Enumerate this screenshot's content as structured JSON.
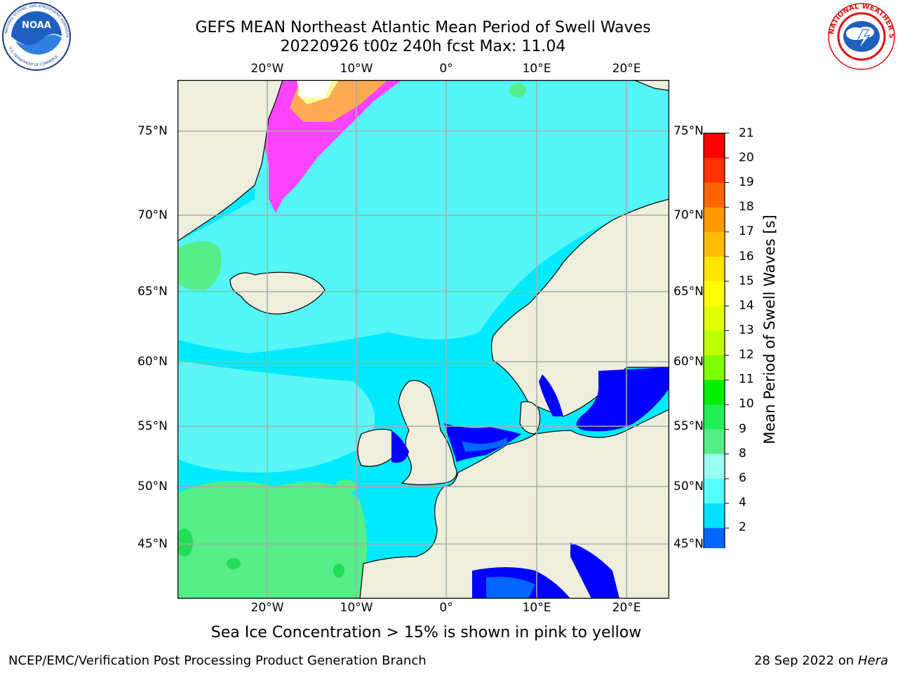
{
  "header": {
    "title_line1": "GEFS MEAN Northeast Atlantic Mean Period of Swell Waves",
    "title_line2": "20220926 t00z 240h fcst   Max: 11.04"
  },
  "logos": {
    "left": {
      "icon": "noaa-logo-icon",
      "ring_text": "NATIONAL OCEANIC AND ATMOSPHERIC ADMINISTRATION",
      "ring_text_bottom": "U.S. DEPARTMENT OF COMMERCE",
      "center_text": "NOAA"
    },
    "right": {
      "icon": "nws-logo-icon",
      "ring_text": "NATIONAL WEATHER SERVICE"
    }
  },
  "map": {
    "projection": "plate carree",
    "lon_range": [
      -30,
      25
    ],
    "lat_range": [
      41,
      78
    ],
    "lon_ticks": [
      "20°W",
      "10°W",
      "0°",
      "10°E",
      "20°E"
    ],
    "lat_ticks": [
      "75°N",
      "70°N",
      "65°N",
      "60°N",
      "55°N",
      "50°N",
      "45°N"
    ],
    "grid": true,
    "land_color": "#eeeedd",
    "background_field": "cyan (4-6 s)"
  },
  "colorbar": {
    "label": "Mean Period of Swell Waves [s]",
    "ticks": [
      "21",
      "20",
      "19",
      "18",
      "17",
      "16",
      "15",
      "14",
      "13",
      "12",
      "11",
      "10",
      "9",
      "8",
      "6",
      "4",
      "2"
    ],
    "colors": [
      "#ff0000",
      "#ff3300",
      "#ff6600",
      "#ff9900",
      "#ffbb00",
      "#ffe400",
      "#ffff00",
      "#e0ff00",
      "#c0ff00",
      "#80ff00",
      "#00ee00",
      "#22ee55",
      "#55ee88",
      "#99ffee",
      "#55ffff",
      "#00e0ff",
      "#0066ff"
    ],
    "under_color": "#0000ff",
    "extend": "min"
  },
  "caption": "Sea Ice Concentration > 15% is shown in pink to yellow",
  "footer": {
    "left": "NCEP/EMC/Verification Post Processing Product Generation Branch",
    "right_date": "28 Sep 2022 on",
    "right_host": "Hera"
  }
}
